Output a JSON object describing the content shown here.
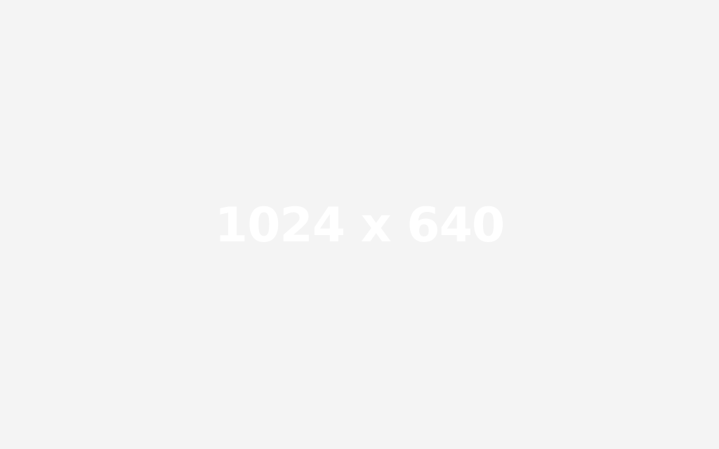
{
  "placeholder": {
    "text": "1024 x 640",
    "background_color": "#f4f4f4",
    "text_color": "#ffffff"
  }
}
